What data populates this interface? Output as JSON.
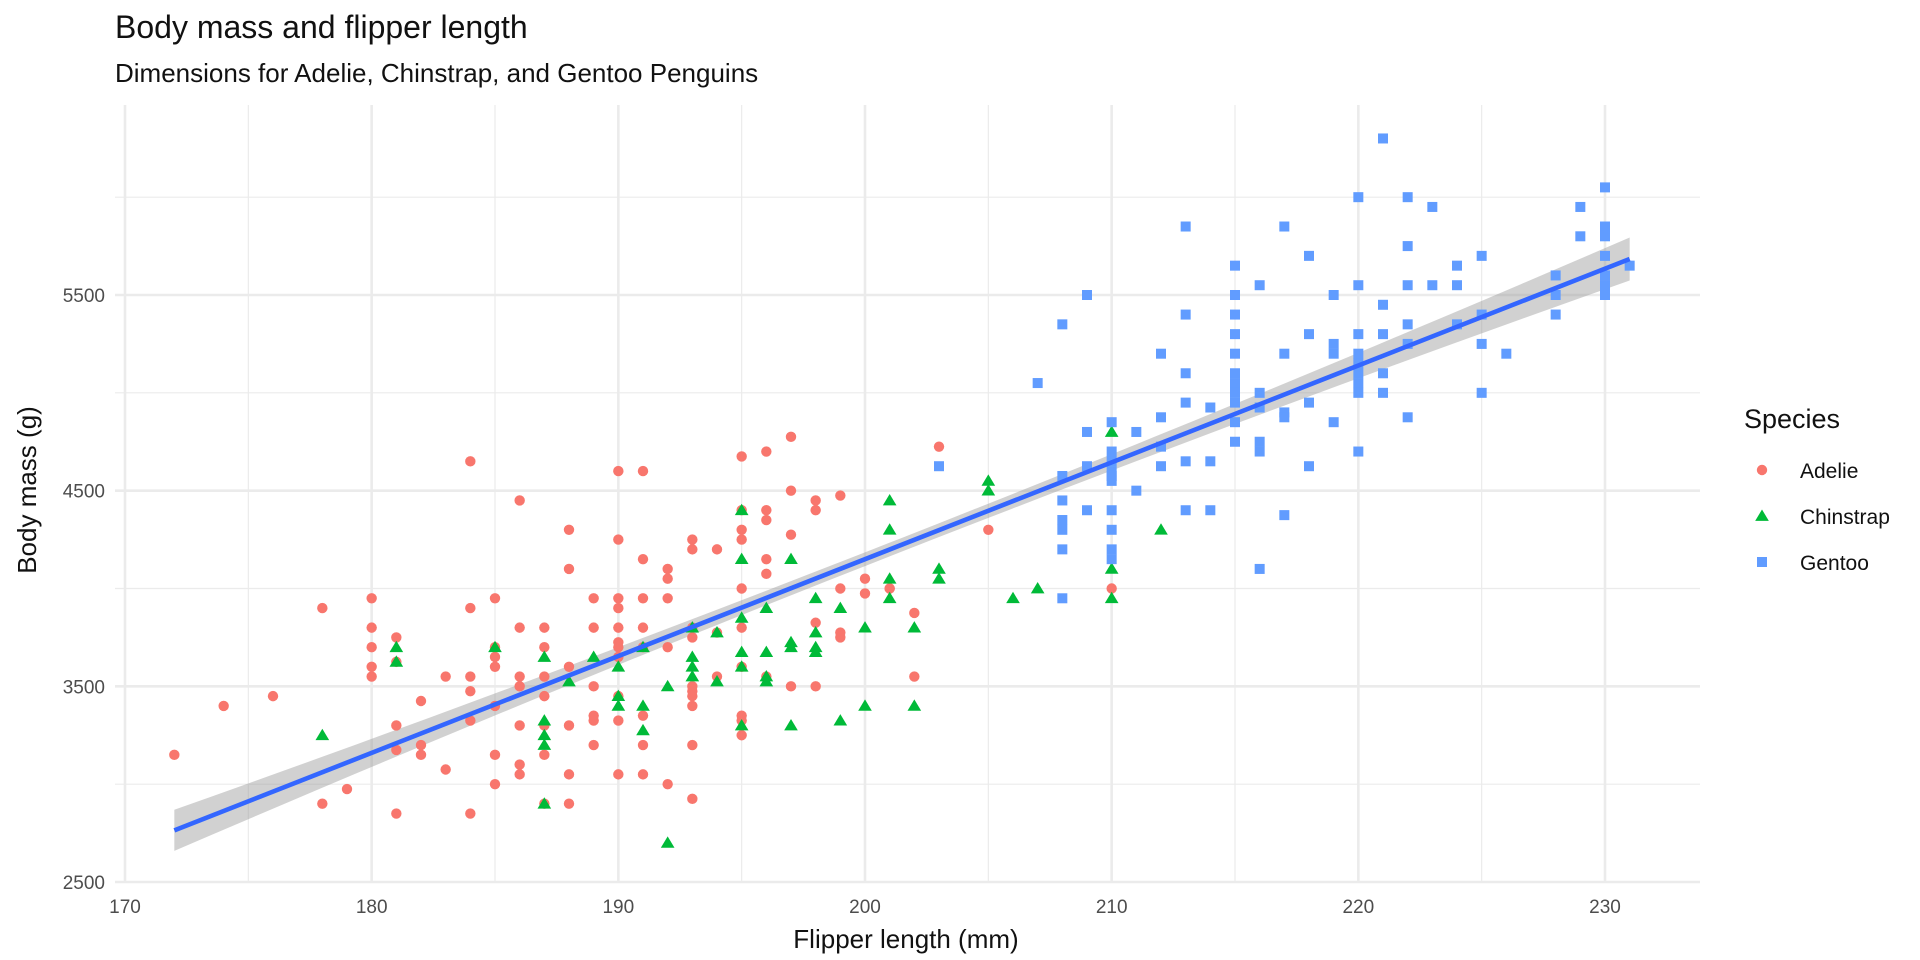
{
  "chart_data": {
    "type": "scatter",
    "title": "Body mass and flipper length",
    "subtitle": "Dimensions for Adelie, Chinstrap, and Gentoo Penguins",
    "xlabel": "Flipper length (mm)",
    "ylabel": "Body mass (g)",
    "xlim": [
      169,
      234
    ],
    "ylim": [
      2500,
      6500
    ],
    "x_ticks": [
      170,
      180,
      190,
      200,
      210,
      220,
      230
    ],
    "y_ticks": [
      2500,
      3500,
      4500,
      5500
    ],
    "y_minor_ticks": [
      3000,
      4000,
      5000,
      6000
    ],
    "x_minor_ticks": [
      175,
      185,
      195,
      205,
      215,
      225
    ],
    "grid": true,
    "legend": {
      "title": "Species",
      "placement": "right",
      "entries": [
        {
          "name": "Adelie",
          "shape": "circle",
          "color": "#F8766D"
        },
        {
          "name": "Chinstrap",
          "shape": "triangle",
          "color": "#00BA38"
        },
        {
          "name": "Gentoo",
          "shape": "square",
          "color": "#619CFF"
        }
      ]
    },
    "colors": {
      "Adelie": "#F8766D",
      "Chinstrap": "#00BA38",
      "Gentoo": "#619CFF",
      "fit_line": "#3366FF",
      "ci_band": "#999999",
      "grid": "#EBEBEB"
    },
    "fit": {
      "method": "linear",
      "x": [
        172,
        231
      ],
      "y": [
        2764,
        5684
      ],
      "ci_halfwidth_ends": 110,
      "ci_halfwidth_center": 35,
      "x_center": 201
    },
    "series": [
      {
        "name": "Adelie",
        "points": [
          [
            172,
            3150
          ],
          [
            174,
            3400
          ],
          [
            176,
            3450
          ],
          [
            178,
            3900
          ],
          [
            178,
            2900
          ],
          [
            179,
            2975
          ],
          [
            180,
            3950
          ],
          [
            180,
            3800
          ],
          [
            180,
            3700
          ],
          [
            180,
            3600
          ],
          [
            180,
            3550
          ],
          [
            181,
            3750
          ],
          [
            181,
            3625
          ],
          [
            181,
            3300
          ],
          [
            181,
            3175
          ],
          [
            181,
            2850
          ],
          [
            182,
            3425
          ],
          [
            182,
            3200
          ],
          [
            182,
            3150
          ],
          [
            183,
            3550
          ],
          [
            183,
            3075
          ],
          [
            184,
            4650
          ],
          [
            184,
            3900
          ],
          [
            184,
            3550
          ],
          [
            184,
            3475
          ],
          [
            184,
            3325
          ],
          [
            184,
            2850
          ],
          [
            185,
            3950
          ],
          [
            185,
            3700
          ],
          [
            185,
            3650
          ],
          [
            185,
            3600
          ],
          [
            185,
            3400
          ],
          [
            185,
            3150
          ],
          [
            185,
            3000
          ],
          [
            186,
            4450
          ],
          [
            186,
            3800
          ],
          [
            186,
            3550
          ],
          [
            186,
            3500
          ],
          [
            186,
            3300
          ],
          [
            186,
            3100
          ],
          [
            186,
            3050
          ],
          [
            187,
            3800
          ],
          [
            187,
            3700
          ],
          [
            187,
            3550
          ],
          [
            187,
            3450
          ],
          [
            187,
            3300
          ],
          [
            187,
            3150
          ],
          [
            187,
            2900
          ],
          [
            188,
            4300
          ],
          [
            188,
            4100
          ],
          [
            188,
            3600
          ],
          [
            188,
            3300
          ],
          [
            188,
            3050
          ],
          [
            188,
            2900
          ],
          [
            189,
            3950
          ],
          [
            189,
            3800
          ],
          [
            189,
            3500
          ],
          [
            189,
            3350
          ],
          [
            189,
            3325
          ],
          [
            189,
            3200
          ],
          [
            190,
            4600
          ],
          [
            190,
            4250
          ],
          [
            190,
            3950
          ],
          [
            190,
            3900
          ],
          [
            190,
            3800
          ],
          [
            190,
            3725
          ],
          [
            190,
            3700
          ],
          [
            190,
            3650
          ],
          [
            190,
            3450
          ],
          [
            190,
            3325
          ],
          [
            190,
            3050
          ],
          [
            191,
            4600
          ],
          [
            191,
            4150
          ],
          [
            191,
            3950
          ],
          [
            191,
            3800
          ],
          [
            191,
            3700
          ],
          [
            191,
            3350
          ],
          [
            191,
            3200
          ],
          [
            191,
            3050
          ],
          [
            192,
            4100
          ],
          [
            192,
            4050
          ],
          [
            192,
            3950
          ],
          [
            192,
            3700
          ],
          [
            192,
            3000
          ],
          [
            193,
            4250
          ],
          [
            193,
            4200
          ],
          [
            193,
            3800
          ],
          [
            193,
            3750
          ],
          [
            193,
            3500
          ],
          [
            193,
            3475
          ],
          [
            193,
            3450
          ],
          [
            193,
            3400
          ],
          [
            193,
            3200
          ],
          [
            193,
            2925
          ],
          [
            194,
            4200
          ],
          [
            194,
            3775
          ],
          [
            194,
            3550
          ],
          [
            195,
            4675
          ],
          [
            195,
            4400
          ],
          [
            195,
            4300
          ],
          [
            195,
            4250
          ],
          [
            195,
            4000
          ],
          [
            195,
            3800
          ],
          [
            195,
            3600
          ],
          [
            195,
            3350
          ],
          [
            195,
            3325
          ],
          [
            195,
            3250
          ],
          [
            196,
            4700
          ],
          [
            196,
            4400
          ],
          [
            196,
            4350
          ],
          [
            196,
            4150
          ],
          [
            196,
            4075
          ],
          [
            196,
            3550
          ],
          [
            197,
            4775
          ],
          [
            197,
            4500
          ],
          [
            197,
            4275
          ],
          [
            197,
            3500
          ],
          [
            198,
            4450
          ],
          [
            198,
            4400
          ],
          [
            198,
            3825
          ],
          [
            198,
            3500
          ],
          [
            199,
            4475
          ],
          [
            199,
            4000
          ],
          [
            199,
            3775
          ],
          [
            199,
            3750
          ],
          [
            200,
            4050
          ],
          [
            200,
            3975
          ],
          [
            201,
            4000
          ],
          [
            201,
            4000
          ],
          [
            202,
            3875
          ],
          [
            202,
            3550
          ],
          [
            203,
            4725
          ],
          [
            205,
            4300
          ],
          [
            210,
            4000
          ]
        ]
      },
      {
        "name": "Chinstrap",
        "points": [
          [
            178,
            3250
          ],
          [
            181,
            3700
          ],
          [
            181,
            3625
          ],
          [
            185,
            3700
          ],
          [
            187,
            3650
          ],
          [
            187,
            3325
          ],
          [
            187,
            3250
          ],
          [
            187,
            3200
          ],
          [
            187,
            2900
          ],
          [
            188,
            3525
          ],
          [
            189,
            3650
          ],
          [
            190,
            3600
          ],
          [
            190,
            3450
          ],
          [
            190,
            3400
          ],
          [
            191,
            3700
          ],
          [
            191,
            3400
          ],
          [
            191,
            3275
          ],
          [
            192,
            3500
          ],
          [
            192,
            2700
          ],
          [
            193,
            3800
          ],
          [
            193,
            3650
          ],
          [
            193,
            3600
          ],
          [
            193,
            3550
          ],
          [
            194,
            3775
          ],
          [
            194,
            3525
          ],
          [
            195,
            4400
          ],
          [
            195,
            4150
          ],
          [
            195,
            3850
          ],
          [
            195,
            3675
          ],
          [
            195,
            3600
          ],
          [
            195,
            3300
          ],
          [
            196,
            3900
          ],
          [
            196,
            3675
          ],
          [
            196,
            3550
          ],
          [
            196,
            3525
          ],
          [
            197,
            4150
          ],
          [
            197,
            3725
          ],
          [
            197,
            3700
          ],
          [
            197,
            3300
          ],
          [
            198,
            3950
          ],
          [
            198,
            3775
          ],
          [
            198,
            3700
          ],
          [
            198,
            3675
          ],
          [
            199,
            3900
          ],
          [
            199,
            3325
          ],
          [
            200,
            3800
          ],
          [
            200,
            3400
          ],
          [
            201,
            4450
          ],
          [
            201,
            4300
          ],
          [
            201,
            4050
          ],
          [
            201,
            3950
          ],
          [
            202,
            3800
          ],
          [
            202,
            3400
          ],
          [
            203,
            4100
          ],
          [
            203,
            4050
          ],
          [
            205,
            4550
          ],
          [
            205,
            4500
          ],
          [
            206,
            3950
          ],
          [
            207,
            4000
          ],
          [
            210,
            4800
          ],
          [
            210,
            4100
          ],
          [
            210,
            3950
          ],
          [
            212,
            4300
          ]
        ]
      },
      {
        "name": "Gentoo",
        "points": [
          [
            203,
            4625
          ],
          [
            207,
            5050
          ],
          [
            208,
            5350
          ],
          [
            208,
            4575
          ],
          [
            208,
            4450
          ],
          [
            208,
            4350
          ],
          [
            208,
            4300
          ],
          [
            208,
            4200
          ],
          [
            208,
            3950
          ],
          [
            209,
            5500
          ],
          [
            209,
            4800
          ],
          [
            209,
            4625
          ],
          [
            209,
            4400
          ],
          [
            210,
            4850
          ],
          [
            210,
            4700
          ],
          [
            210,
            4650
          ],
          [
            210,
            4600
          ],
          [
            210,
            4575
          ],
          [
            210,
            4550
          ],
          [
            210,
            4400
          ],
          [
            210,
            4300
          ],
          [
            210,
            4200
          ],
          [
            210,
            4150
          ],
          [
            211,
            4800
          ],
          [
            211,
            4500
          ],
          [
            212,
            5200
          ],
          [
            212,
            4875
          ],
          [
            212,
            4725
          ],
          [
            212,
            4625
          ],
          [
            213,
            5850
          ],
          [
            213,
            5400
          ],
          [
            213,
            5100
          ],
          [
            213,
            4950
          ],
          [
            213,
            4650
          ],
          [
            213,
            4400
          ],
          [
            214,
            4925
          ],
          [
            214,
            4650
          ],
          [
            214,
            4400
          ],
          [
            215,
            5650
          ],
          [
            215,
            5500
          ],
          [
            215,
            5400
          ],
          [
            215,
            5300
          ],
          [
            215,
            5200
          ],
          [
            215,
            5100
          ],
          [
            215,
            5050
          ],
          [
            215,
            5000
          ],
          [
            215,
            4950
          ],
          [
            215,
            4850
          ],
          [
            215,
            4750
          ],
          [
            216,
            5550
          ],
          [
            216,
            5000
          ],
          [
            216,
            4925
          ],
          [
            216,
            4750
          ],
          [
            216,
            4700
          ],
          [
            216,
            4100
          ],
          [
            217,
            5850
          ],
          [
            217,
            5200
          ],
          [
            217,
            4900
          ],
          [
            217,
            4875
          ],
          [
            217,
            4375
          ],
          [
            218,
            5700
          ],
          [
            218,
            5300
          ],
          [
            218,
            4950
          ],
          [
            218,
            4625
          ],
          [
            219,
            5500
          ],
          [
            219,
            5250
          ],
          [
            219,
            5200
          ],
          [
            219,
            4850
          ],
          [
            220,
            6000
          ],
          [
            220,
            5550
          ],
          [
            220,
            5300
          ],
          [
            220,
            5200
          ],
          [
            220,
            5150
          ],
          [
            220,
            5100
          ],
          [
            220,
            5050
          ],
          [
            220,
            5000
          ],
          [
            220,
            4700
          ],
          [
            221,
            6300
          ],
          [
            221,
            5450
          ],
          [
            221,
            5300
          ],
          [
            221,
            5100
          ],
          [
            221,
            5000
          ],
          [
            222,
            6000
          ],
          [
            222,
            5750
          ],
          [
            222,
            5550
          ],
          [
            222,
            5350
          ],
          [
            222,
            5250
          ],
          [
            222,
            4875
          ],
          [
            223,
            5950
          ],
          [
            223,
            5550
          ],
          [
            224,
            5650
          ],
          [
            224,
            5550
          ],
          [
            224,
            5350
          ],
          [
            225,
            5700
          ],
          [
            225,
            5400
          ],
          [
            225,
            5250
          ],
          [
            225,
            5000
          ],
          [
            226,
            5200
          ],
          [
            228,
            5600
          ],
          [
            228,
            5500
          ],
          [
            228,
            5400
          ],
          [
            229,
            5950
          ],
          [
            229,
            5800
          ],
          [
            230,
            6050
          ],
          [
            230,
            5850
          ],
          [
            230,
            5800
          ],
          [
            230,
            5700
          ],
          [
            230,
            5600
          ],
          [
            230,
            5550
          ],
          [
            230,
            5500
          ],
          [
            231,
            5650
          ]
        ]
      }
    ]
  }
}
